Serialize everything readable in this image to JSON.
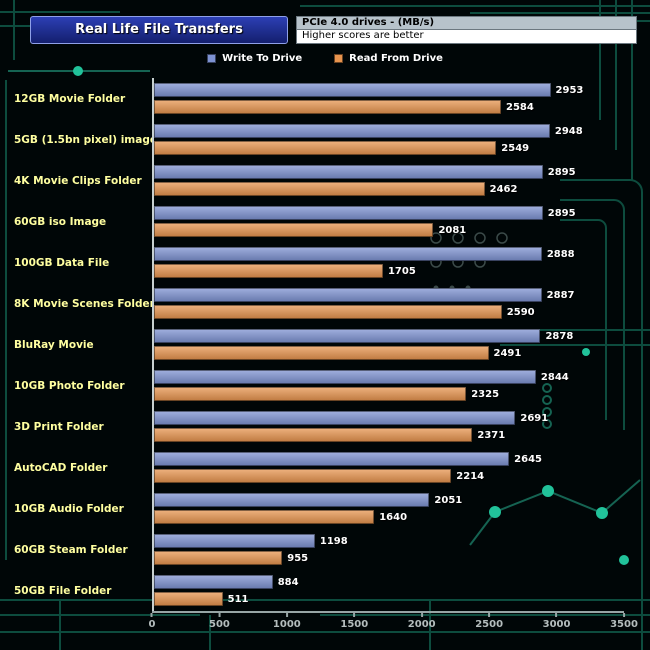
{
  "header": {
    "title": "Real Life File Transfers",
    "drive_type_label": "PCIe 4.0 drives - (MB/s)",
    "note_label": "Higher scores are better"
  },
  "legend": [
    {
      "label": "Write To Drive",
      "color": "#7d92d2"
    },
    {
      "label": "Read From Drive",
      "color": "#e8944e"
    }
  ],
  "colors": {
    "write_bar": "#7d92d2",
    "read_bar": "#e8944e",
    "category_label": "#ffffa0",
    "value_label": "#ffffff",
    "axis": "#97a5a5",
    "background": "#000607",
    "circuit_line": "#0d4c3e",
    "circuit_dot": "#21c29a",
    "title_box_bg": "#1e2f9e"
  },
  "chart_data": {
    "type": "bar",
    "orientation": "horizontal",
    "title": "Real Life File Transfers",
    "subtitle": "PCIe 4.0 drives - (MB/s)",
    "note": "Higher scores are better",
    "categories": [
      "12GB Movie Folder",
      "5GB (1.5bn pixel) image",
      "4K Movie Clips Folder",
      "60GB iso Image",
      "100GB Data File",
      "8K Movie Scenes Folder",
      "BluRay Movie",
      "10GB Photo Folder",
      "3D Print Folder",
      "AutoCAD Folder",
      "10GB Audio Folder",
      "60GB Steam Folder",
      "50GB File Folder"
    ],
    "series": [
      {
        "name": "Write To Drive",
        "color": "#7d92d2",
        "values": [
          2953,
          2948,
          2895,
          2895,
          2888,
          2887,
          2878,
          2844,
          2691,
          2645,
          2051,
          1198,
          884
        ]
      },
      {
        "name": "Read From Drive",
        "color": "#e8944e",
        "values": [
          2584,
          2549,
          2462,
          2081,
          1705,
          2590,
          2491,
          2325,
          2371,
          2214,
          1640,
          955,
          511
        ]
      }
    ],
    "xlim": [
      0,
      3500
    ],
    "xticks": [
      0,
      500,
      1000,
      1500,
      2000,
      2500,
      3000,
      3500
    ],
    "xlabel": "",
    "ylabel": "",
    "legend_position": "top",
    "grid": false
  }
}
